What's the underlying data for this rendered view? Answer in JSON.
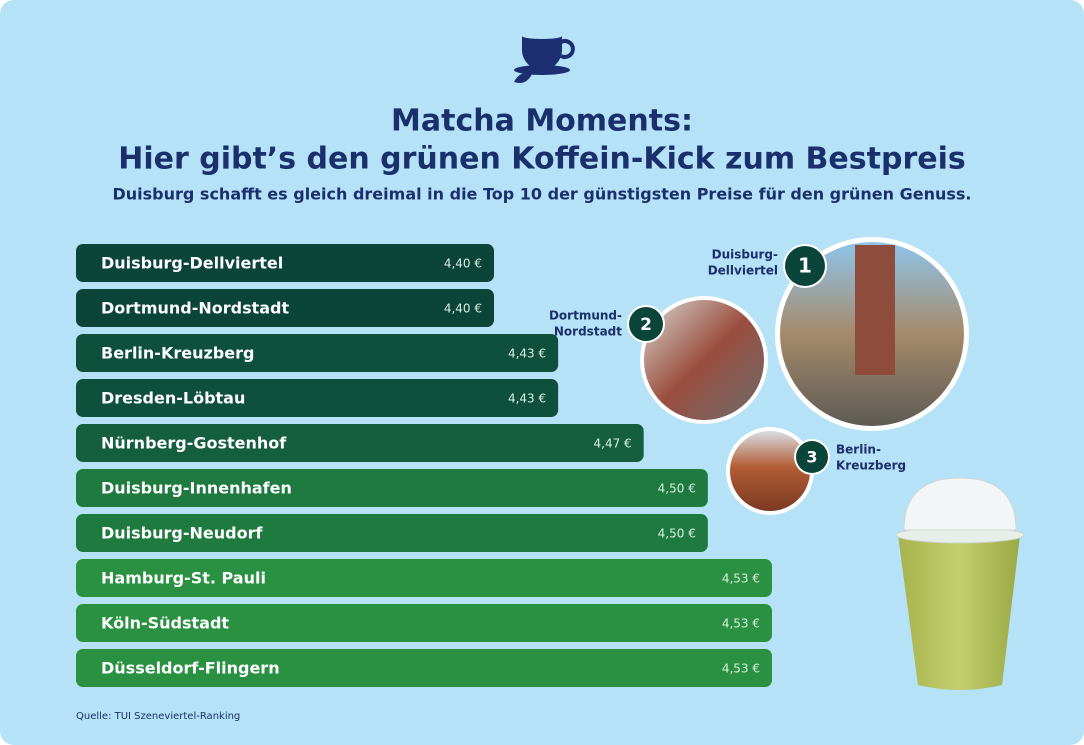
{
  "chart_data": {
    "type": "bar",
    "orientation": "horizontal",
    "title": [
      "Matcha Moments:",
      "Hier gibt’s den grünen Koffein-Kick zum Bestpreis"
    ],
    "subtitle": "Duisburg schafft es gleich dreimal in die Top 10 der günstigsten Preise für den grünen Genuss.",
    "categories": [
      "Duisburg-Dellviertel",
      "Dortmund-Nordstadt",
      "Berlin-Kreuzberg",
      "Dresden-Löbtau",
      "Nürnberg-Gostenhof",
      "Duisburg-Innenhafen",
      "Duisburg-Neudorf",
      "Hamburg-St. Pauli",
      "Köln-Südstadt",
      "Düsseldorf-Flingern"
    ],
    "values": [
      4.4,
      4.4,
      4.43,
      4.43,
      4.47,
      4.5,
      4.5,
      4.53,
      4.53,
      4.53
    ],
    "value_labels": [
      "4,40 €",
      "4,40 €",
      "4,43 €",
      "4,43 €",
      "4,47 €",
      "4,50 €",
      "4,50 €",
      "4,53 €",
      "4,53 €",
      "4,53 €"
    ],
    "colors": [
      "#0b4439",
      "#0b4439",
      "#0f503d",
      "#0f503d",
      "#155f40",
      "#1f7a3f",
      "#1f7a3f",
      "#2a9142",
      "#2a9142",
      "#2a9142"
    ],
    "annotations": [
      {
        "rank": 1,
        "label": [
          "Duisburg-",
          "Dellviertel"
        ]
      },
      {
        "rank": 2,
        "label": [
          "Dortmund-",
          "Nordstadt"
        ]
      },
      {
        "rank": 3,
        "label": [
          "Berlin-",
          "Kreuzberg"
        ]
      }
    ],
    "source": "Quelle: TUI Szeneviertel-Ranking"
  }
}
